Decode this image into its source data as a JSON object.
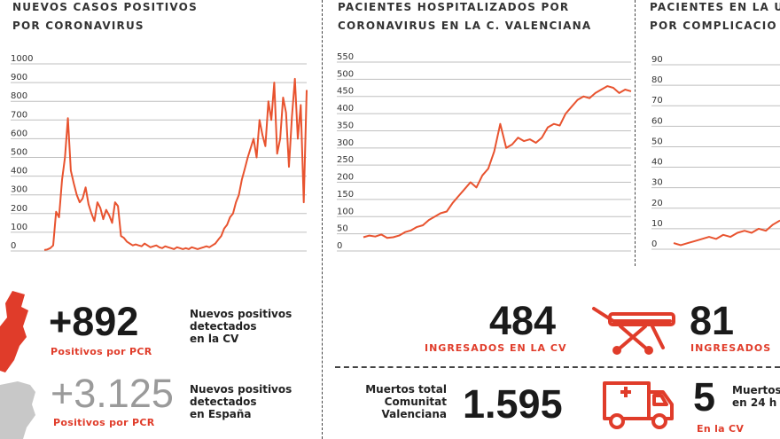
{
  "panels": {
    "cases": {
      "title_lines": [
        "NUEVOS CASOS POSITIVOS",
        "POR CORONAVIRUS"
      ]
    },
    "hospital": {
      "title_lines": [
        "PACIENTES HOSPITALIZADOS POR",
        "CORONAVIRUS EN LA C. VALENCIANA"
      ]
    },
    "icu": {
      "title_lines": [
        "PACIENTES EN LA U",
        "POR COMPLICACIO"
      ]
    }
  },
  "stats": {
    "cv_positives": {
      "value": "+892",
      "label": "Positivos por PCR",
      "desc_lines": [
        "Nuevos positivos",
        "detectados",
        "en la CV"
      ]
    },
    "es_positives": {
      "value": "+3.125",
      "label": "Positivos por PCR",
      "desc_lines": [
        "Nuevos positivos",
        "detectados",
        "en España"
      ]
    },
    "hospitalized": {
      "value": "484",
      "label": "INGRESADOS EN LA CV"
    },
    "icu": {
      "value": "81",
      "label": "INGRESADOS"
    },
    "deaths_total": {
      "value": "1.595",
      "desc_lines": [
        "Muertos total",
        "Comunitat",
        "Valenciana"
      ]
    },
    "deaths_24h": {
      "value": "5",
      "desc_lines": [
        "Muertos",
        "en 24 h"
      ],
      "label": "En la CV"
    }
  },
  "icons": {
    "map": "valencia-map-icon",
    "spain": "spain-map-icon",
    "stretcher": "stretcher-icon",
    "ambulance": "ambulance-icon"
  },
  "colors": {
    "accent": "#e03c2a",
    "grey": "#9a9a9a",
    "line": "#e8532f"
  },
  "chart_data": [
    {
      "type": "line",
      "title": "NUEVOS CASOS POSITIVOS POR CORONAVIRUS",
      "ylim": [
        0,
        1000
      ],
      "yticks": [
        0,
        100,
        200,
        300,
        400,
        500,
        600,
        700,
        800,
        900,
        1000
      ],
      "grid": true,
      "series": [
        {
          "values": [
            5,
            8,
            15,
            30,
            210,
            180,
            380,
            500,
            710,
            430,
            360,
            300,
            260,
            280,
            340,
            250,
            200,
            160,
            260,
            230,
            170,
            220,
            190,
            150,
            260,
            240,
            80,
            70,
            50,
            40,
            30,
            35,
            30,
            25,
            40,
            30,
            20,
            25,
            30,
            20,
            15,
            25,
            20,
            15,
            10,
            20,
            15,
            10,
            15,
            10,
            20,
            15,
            10,
            15,
            20,
            25,
            20,
            30,
            40,
            60,
            80,
            120,
            140,
            180,
            200,
            260,
            300,
            380,
            440,
            500,
            550,
            600,
            500,
            700,
            620,
            560,
            800,
            700,
            900,
            520,
            600,
            820,
            740,
            450,
            720,
            920,
            600,
            780,
            260,
            860
          ]
        }
      ]
    },
    {
      "type": "line",
      "title": "PACIENTES HOSPITALIZADOS POR CORONAVIRUS EN LA C. VALENCIANA",
      "ylim": [
        0,
        550
      ],
      "yticks": [
        0,
        50,
        100,
        150,
        200,
        250,
        300,
        350,
        400,
        450,
        500,
        550
      ],
      "grid": true,
      "series": [
        {
          "values": [
            40,
            45,
            42,
            48,
            38,
            40,
            45,
            55,
            60,
            70,
            75,
            90,
            100,
            110,
            115,
            140,
            160,
            180,
            200,
            185,
            220,
            240,
            290,
            370,
            300,
            310,
            330,
            320,
            325,
            315,
            330,
            360,
            370,
            365,
            400,
            420,
            440,
            450,
            445,
            460,
            470,
            480,
            475,
            460,
            470,
            465
          ]
        }
      ]
    },
    {
      "type": "line",
      "title": "PACIENTES EN LA U POR COMPLICACIO",
      "ylim": [
        0,
        90
      ],
      "yticks": [
        0,
        10,
        20,
        30,
        40,
        50,
        60,
        70,
        80,
        90
      ],
      "grid": true,
      "series": [
        {
          "values": [
            3,
            2,
            3,
            4,
            5,
            6,
            5,
            7,
            6,
            8,
            9,
            8,
            10,
            9,
            12,
            14
          ]
        }
      ]
    }
  ]
}
